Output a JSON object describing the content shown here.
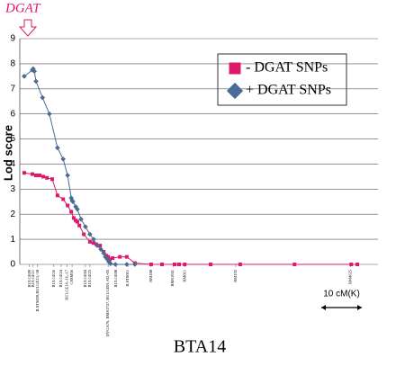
{
  "chart_data": {
    "type": "line",
    "ylabel": "Lod score",
    "xlabel": "BTA14",
    "annotations": {
      "dgat": "DGAT",
      "scale": "10 cM(K)"
    },
    "scale_bar": [
      0,
      10
    ],
    "xlim": [
      0,
      88.4
    ],
    "ylim": [
      0,
      9
    ],
    "yticks": [
      0,
      1,
      2,
      3,
      4,
      5,
      6,
      7,
      8,
      9
    ],
    "grid": true,
    "legend": "upper right",
    "series": [
      {
        "name": "- DGAT SNPs",
        "color": "#e0186c",
        "marker": "square",
        "x": [
          1.1,
          3.1,
          4,
          4.9,
          5.8,
          6.7,
          8,
          9.3,
          10.7,
          11.8,
          12.7,
          13.3,
          13.8,
          14.2,
          14.7,
          15.8,
          17.3,
          18.2,
          18.9,
          19.8,
          20.7,
          21.3,
          21.8,
          22.2,
          22.9,
          24.7,
          26.4,
          28.4,
          32.4,
          35.1,
          38.2,
          39.3,
          40.7,
          47.1,
          54.4,
          67.8,
          81.8,
          83.3
        ],
        "values": [
          3.65,
          3.6,
          3.55,
          3.55,
          3.5,
          3.45,
          3.4,
          2.75,
          2.6,
          2.35,
          2.1,
          1.85,
          1.75,
          1.7,
          1.55,
          1.2,
          0.9,
          0.85,
          0.8,
          0.75,
          0.5,
          0.35,
          0.3,
          0.2,
          0.25,
          0.3,
          0.3,
          0.05,
          0,
          0,
          0,
          0,
          0,
          0,
          0,
          0,
          0,
          0
        ]
      },
      {
        "name": "+ DGAT SNPs",
        "color": "#4a6b96",
        "marker": "diamond",
        "x": [
          1.1,
          3.1,
          3.3,
          3.6,
          4,
          5.6,
          7.3,
          9.3,
          10.7,
          11.8,
          12.7,
          12.9,
          13.1,
          13.8,
          14.2,
          15.1,
          16.2,
          17.3,
          18.2,
          19.1,
          20,
          20.7,
          21.1,
          21.6,
          22,
          22.4,
          23.6,
          26.4,
          28.4
        ],
        "values": [
          7.5,
          7.75,
          7.8,
          7.7,
          7.3,
          6.65,
          6.0,
          4.65,
          4.2,
          3.55,
          2.65,
          2.55,
          2.5,
          2.3,
          2.2,
          1.8,
          1.5,
          1.2,
          1.0,
          0.75,
          0.6,
          0.45,
          0.3,
          0.2,
          0.1,
          0.03,
          0,
          0,
          0
        ]
      }
    ],
    "markers": [
      {
        "label": "BULGE09",
        "x": 2.4
      },
      {
        "label": "BULGE11",
        "x": 3.3
      },
      {
        "label": "ILSTS039,BULGE13,-30",
        "x": 4.4
      },
      {
        "label": "BULGE26",
        "x": 8.4
      },
      {
        "label": "BULGE24",
        "x": 10.2
      },
      {
        "label": "BULGE14,-16,-17",
        "x": 11.6
      },
      {
        "label": "CSSM66",
        "x": 12.9
      },
      {
        "label": "BULGE04",
        "x": 16.2
      },
      {
        "label": "BULGE25",
        "x": 17.3
      },
      {
        "label": "DVGA76, BMS1747, BULGE01,-02,-03",
        "x": 21.8
      },
      {
        "label": "BULGE08",
        "x": 23.8
      },
      {
        "label": "ILSTS011",
        "x": 26.7
      },
      {
        "label": "RM180",
        "x": 32.4
      },
      {
        "label": "BMS1941",
        "x": 37.8
      },
      {
        "label": "RM011",
        "x": 40.7
      },
      {
        "label": "RM192",
        "x": 53.3
      },
      {
        "label": "BM4625",
        "x": 81.6
      }
    ]
  }
}
